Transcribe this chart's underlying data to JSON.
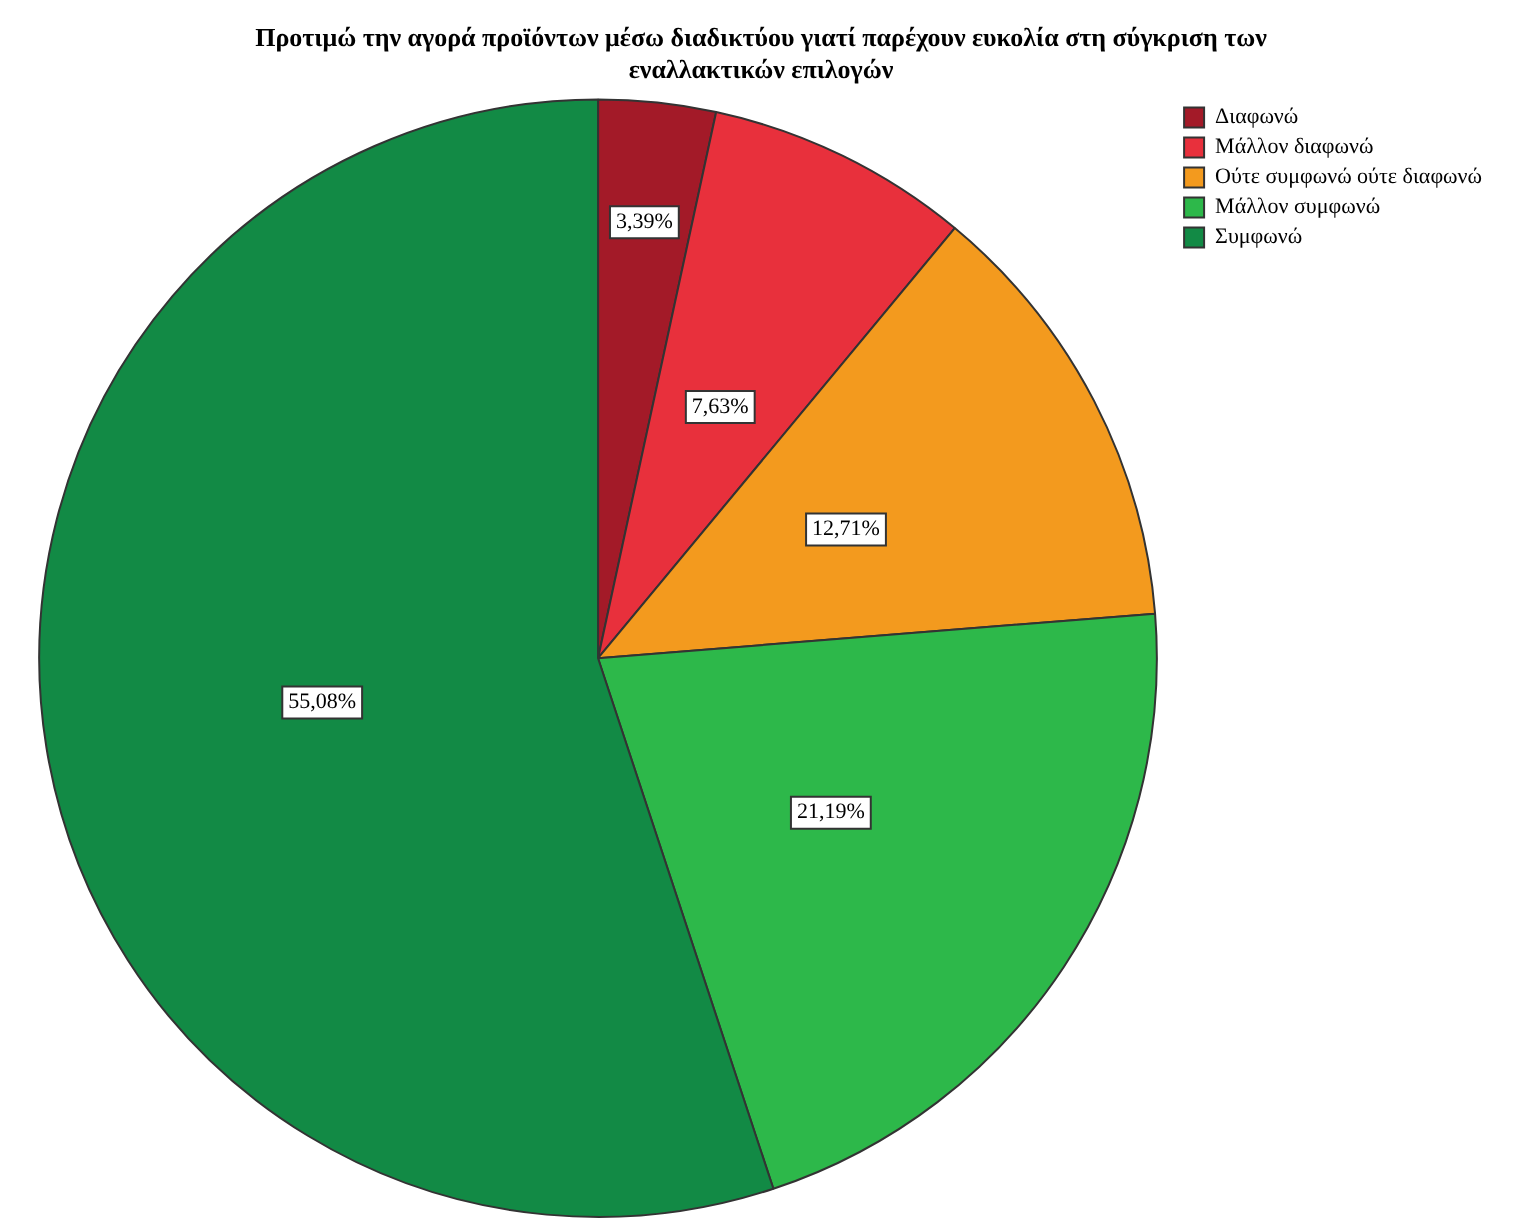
{
  "chart_data": {
    "type": "pie",
    "title": "Προτιμώ την αγορά προϊόντων μέσω διαδικτύου γιατί παρέχουν ευκολία στη σύγκριση των εναλλακτικών επιλογών",
    "categories": [
      "Διαφωνώ",
      "Μάλλον διαφωνώ",
      "Ούτε συμφωνώ ούτε διαφωνώ",
      "Μάλλον συμφωνώ",
      "Συμφωνώ"
    ],
    "values": [
      3.39,
      7.63,
      12.71,
      21.19,
      55.08
    ],
    "colors": [
      "#a31a28",
      "#e8303c",
      "#f39a1e",
      "#2db84a",
      "#128a45"
    ],
    "value_labels": [
      "3,39%",
      "7,63%",
      "12,71%",
      "21,19%",
      "55,08%"
    ],
    "legend": "top right"
  }
}
